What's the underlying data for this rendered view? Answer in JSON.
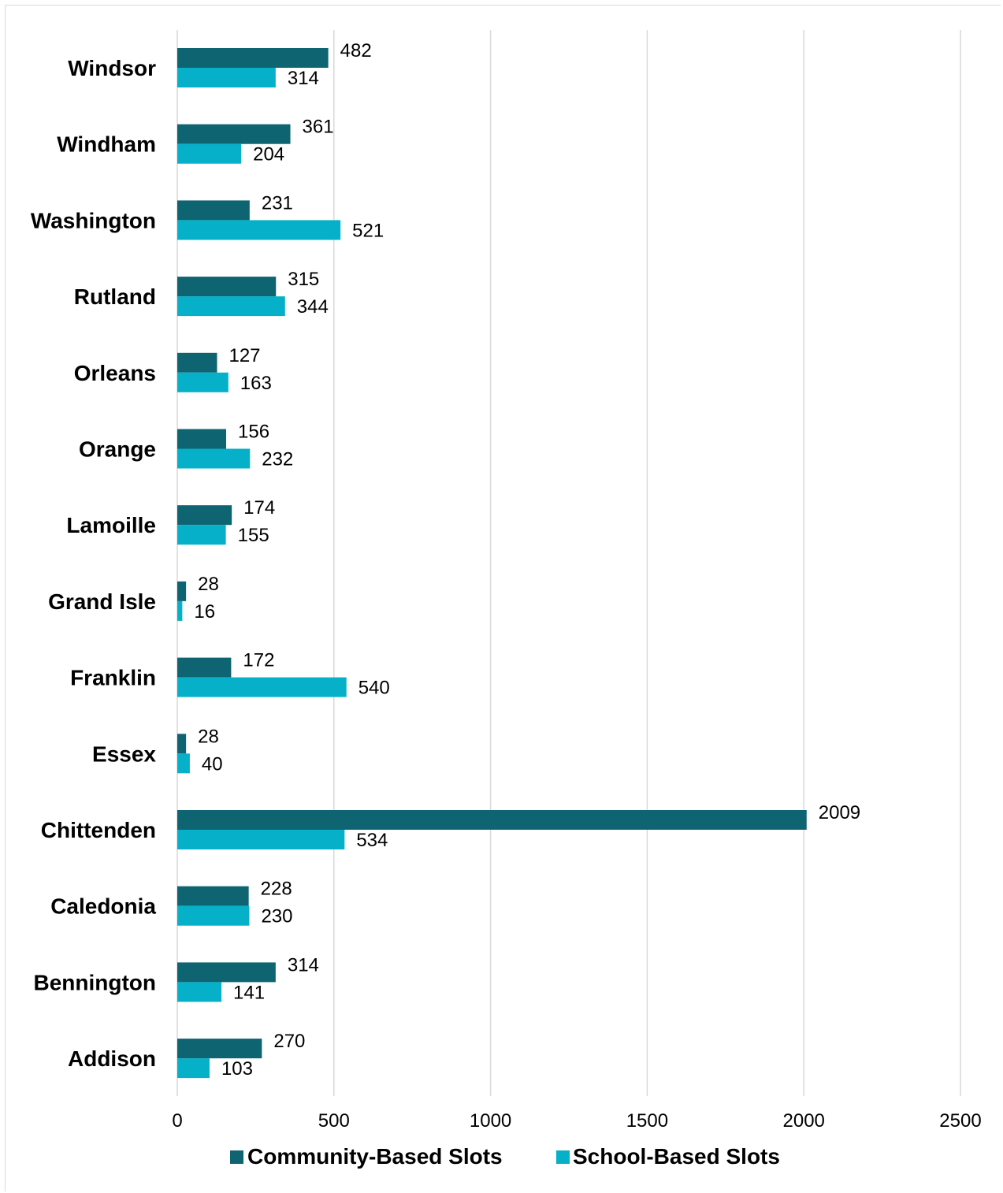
{
  "chart_data": {
    "type": "bar",
    "orientation": "horizontal",
    "categories": [
      "Windsor",
      "Windham",
      "Washington",
      "Rutland",
      "Orleans",
      "Orange",
      "Lamoille",
      "Grand Isle",
      "Franklin",
      "Essex",
      "Chittenden",
      "Caledonia",
      "Bennington",
      "Addison"
    ],
    "series": [
      {
        "name": "Community-Based Slots",
        "color": "#0e6471",
        "values": [
          482,
          361,
          231,
          315,
          127,
          156,
          174,
          28,
          172,
          28,
          2009,
          228,
          314,
          270
        ]
      },
      {
        "name": "School-Based Slots",
        "color": "#05b0c8",
        "values": [
          314,
          204,
          521,
          344,
          163,
          232,
          155,
          16,
          540,
          40,
          534,
          230,
          141,
          103
        ]
      }
    ],
    "xlim": [
      0,
      2500
    ],
    "xticks": [
      "0",
      "500",
      "1000",
      "1500",
      "2000",
      "2500"
    ],
    "grid": "vertical",
    "legend": "bottom"
  }
}
